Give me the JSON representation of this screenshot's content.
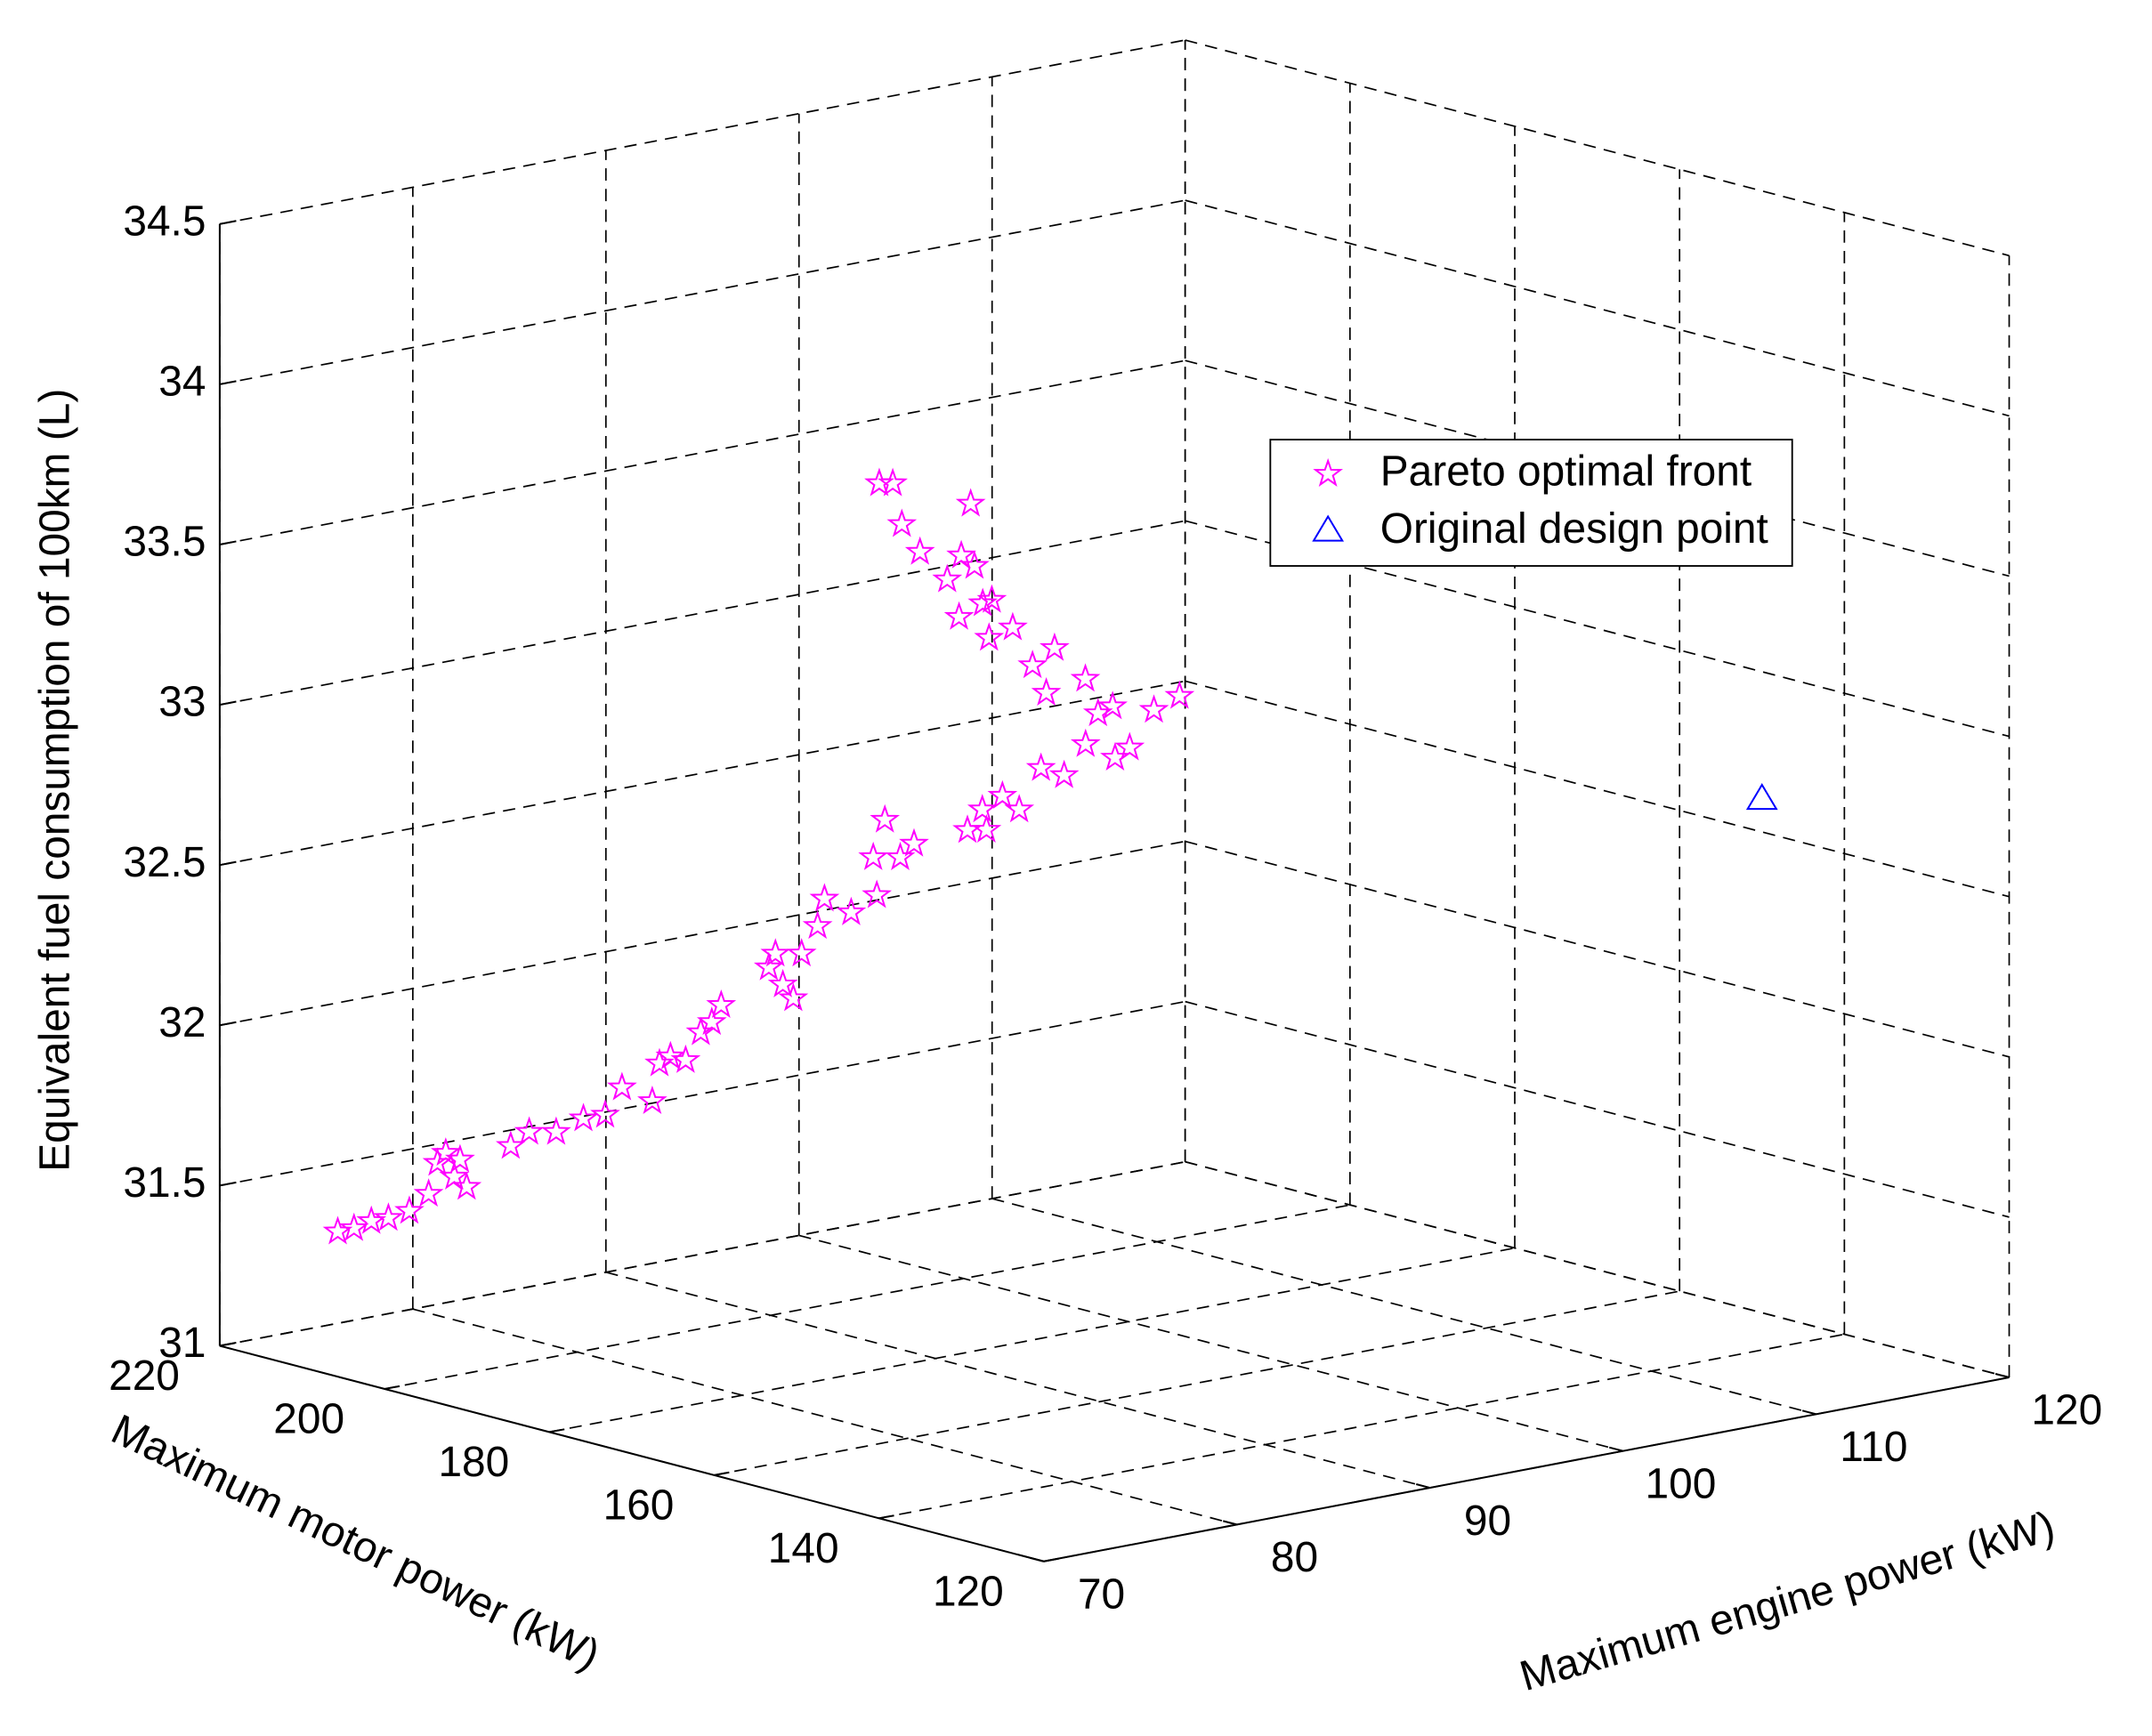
{
  "chart_data": {
    "type": "scatter3d",
    "xlabel": "Maximum motor power (kW)",
    "ylabel": "Maximum engine power (kW)",
    "zlabel": "Equivalent fuel consumption of 100km (L)",
    "xlim": [
      120,
      220
    ],
    "ylim": [
      70,
      120
    ],
    "zlim": [
      31,
      34.5
    ],
    "xticks": [
      120,
      140,
      160,
      180,
      200,
      220
    ],
    "yticks": [
      70,
      80,
      90,
      100,
      110,
      120
    ],
    "zticks": [
      31,
      31.5,
      32,
      32.5,
      33,
      33.5,
      34,
      34.5
    ],
    "grid": true,
    "legend": "northeast",
    "series": [
      {
        "name": "Pareto optimal front",
        "color": "#ff00ff",
        "marker": "pentagram",
        "x": [
          218.8,
          218.0,
          217.3,
          216.4,
          215.5,
          214.8,
          214.9,
          213.8,
          213.0,
          213.8,
          214.6,
          211.4,
          210.8,
          209.4,
          208.2,
          207.2,
          206.8,
          205.0,
          205.3,
          204.9,
          204.0,
          203.8,
          203.4,
          203.2,
          201.4,
          201.3,
          200.4,
          199.6,
          200.0,
          199.7,
          199.8,
          198.2,
          197.2,
          198.1,
          198.1,
          196.7,
          196.2,
          193.7,
          192.8,
          193.3,
          192.5,
          191.4,
          191.1,
          189.7,
          189.2,
          187.5,
          186.9,
          189.1,
          188.5,
          186.3,
          185.3,
          190.4,
          192.5,
          193.3,
          192.1,
          195.0,
          196.0,
          197.0,
          196.6,
          198.0,
          199.2,
          198.9,
          198.0,
          199.4,
          201.1,
          202.6,
          203.7,
          204.4
        ],
        "y": [
          75.6,
          76.1,
          76.7,
          77.2,
          77.9,
          78.6,
          79.1,
          79.5,
          79.8,
          79.8,
          79.4,
          81.4,
          82.1,
          82.9,
          83.8,
          84.5,
          85.2,
          86.0,
          86.5,
          86.9,
          87.3,
          88.0,
          88.4,
          88.8,
          90.5,
          90.8,
          90.8,
          91.0,
          91.6,
          92.3,
          92.7,
          93.4,
          94.3,
          94.5,
          95.1,
          95.3,
          95.8,
          97.5,
          98.1,
          98.1,
          98.8,
          99.2,
          100.2,
          100.8,
          101.7,
          102.5,
          103.0,
          102.3,
          102.8,
          104.0,
          104.9,
          102.2,
          101.5,
          100.7,
          100.9,
          100.4,
          99.6,
          99.7,
          100.0,
          98.9,
          98.8,
          99.4,
          99.7,
          100.1,
          98.2,
          97.9,
          97.9,
          97.5
        ],
        "z": [
          31.3,
          31.31,
          31.33,
          31.34,
          31.36,
          31.41,
          31.5,
          31.46,
          31.43,
          31.51,
          31.53,
          31.55,
          31.59,
          31.59,
          31.63,
          31.64,
          31.72,
          31.68,
          31.79,
          31.81,
          31.8,
          31.88,
          31.91,
          31.96,
          32.07,
          32.11,
          32.02,
          31.98,
          32.11,
          32.19,
          32.27,
          32.23,
          32.28,
          32.39,
          32.5,
          32.39,
          32.43,
          32.47,
          32.47,
          32.53,
          32.57,
          32.53,
          32.65,
          32.63,
          32.72,
          32.68,
          32.71,
          32.81,
          32.83,
          32.82,
          32.86,
          32.91,
          33.0,
          32.95,
          32.87,
          33.06,
          33.03,
          33.13,
          33.14,
          33.09,
          33.2,
          33.27,
          33.24,
          33.42,
          33.28,
          33.36,
          33.48,
          33.48
        ]
      },
      {
        "name": "Original design point",
        "color": "#0000ff",
        "marker": "triangle",
        "x": [
          150
        ],
        "y": [
          120
        ],
        "z": [
          32.6
        ]
      }
    ]
  }
}
